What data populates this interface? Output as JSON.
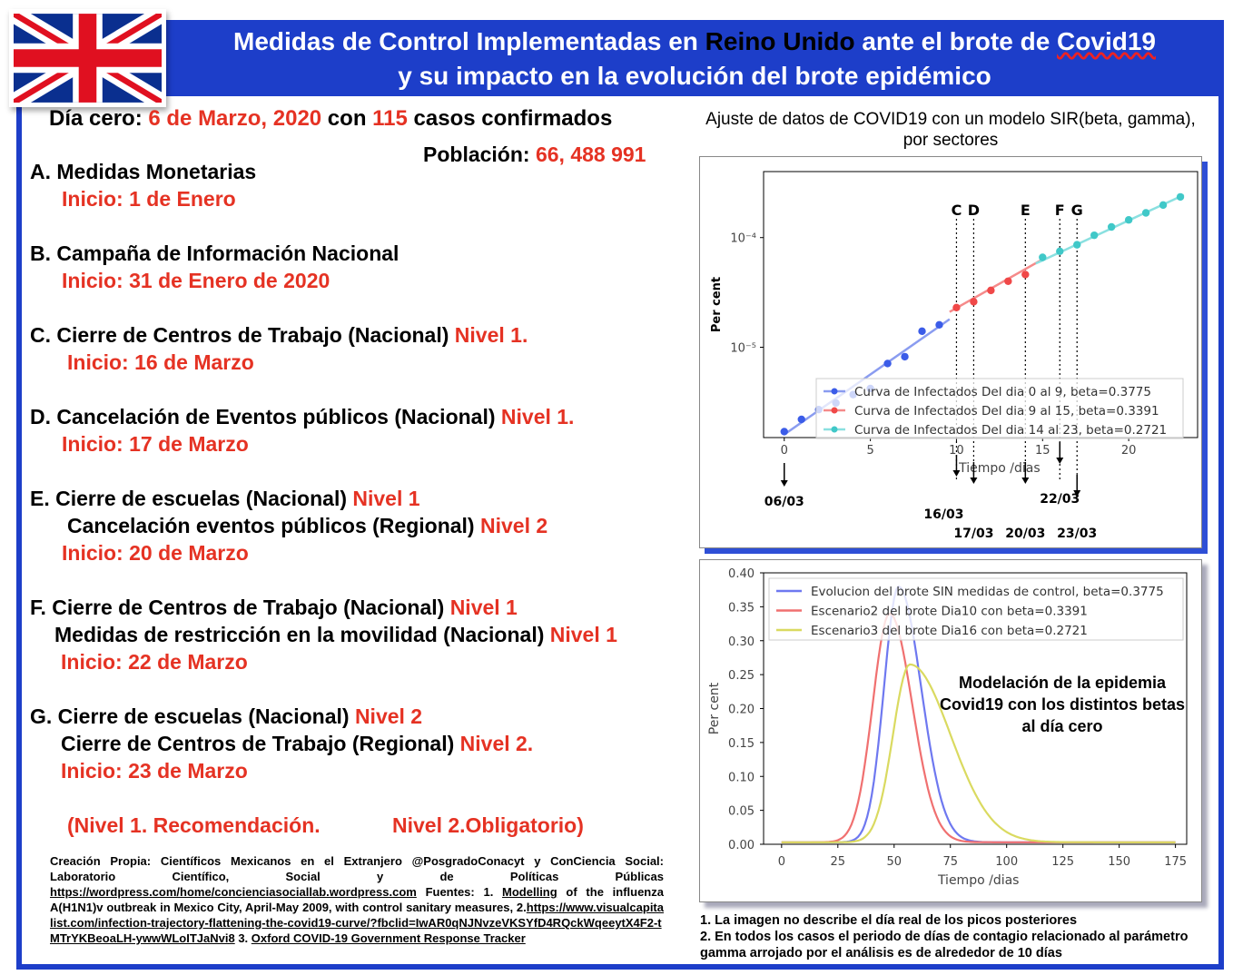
{
  "header": {
    "title_part1": "Medidas de Control Implementadas en ",
    "title_country": "Reino Unido",
    "title_part2": " ante el brote de ",
    "title_disease": "Covid19",
    "subtitle": "y su impacto en la evolución del brote epidémico"
  },
  "flag": {
    "icon": "union-jack-flag",
    "colors": {
      "blue": "#0a2f8f",
      "red": "#e01020",
      "white": "#ffffff"
    }
  },
  "day_zero": {
    "label": "Día cero: ",
    "date": "6 de Marzo, 2020",
    "mid": " con ",
    "cases": "115",
    "suffix": " casos confirmados"
  },
  "population": {
    "label": "Población: ",
    "value": "66, 488 991"
  },
  "measures": [
    {
      "heading": "A.   Medidas Monetarias",
      "start": "Inicio: 1 de Enero"
    },
    {
      "heading": "B.  Campaña de Información Nacional",
      "start": "Inicio: 31 de Enero de 2020"
    },
    {
      "heading": "C. Cierre de Centros de Trabajo (Nacional) ",
      "level": "Nivel 1.",
      "start": "Inicio: 16 de Marzo"
    },
    {
      "heading": "D. Cancelación de Eventos públicos (Nacional) ",
      "level": "Nivel 1.",
      "start": "Inicio: 17 de Marzo"
    },
    {
      "heading": "E.  Cierre de escuelas (Nacional) ",
      "level": "Nivel 1",
      "heading2": "Cancelación eventos públicos (Regional) ",
      "level2": "Nivel 2",
      "start": "Inicio: 20 de Marzo"
    },
    {
      "heading": "F. Cierre de Centros de Trabajo (Nacional) ",
      "level": "Nivel 1",
      "heading2": "Medidas de restricción en la movilidad (Nacional) ",
      "level2": "Nivel 1",
      "start": "Inicio: 22 de Marzo"
    },
    {
      "heading": "G.  Cierre de escuelas (Nacional) ",
      "level": "Nivel 2",
      "heading2": "Cierre de Centros de Trabajo (Regional) ",
      "level2": "Nivel 2.",
      "start": "Inicio: 23 de Marzo"
    }
  ],
  "levels_legend": {
    "level1": "(Nivel 1. Recomendación.",
    "level2": "Nivel 2.Obligatorio)"
  },
  "credits": {
    "text1": "Creación Propia: Científicos Mexicanos en el Extranjero @PosgradoConacyt y ConCiencia Social: Laboratorio Científico, Social y de Políticas Públicas ",
    "link1": "https://wordpress.com/home/concienciasociallab.wordpress.com",
    "text2": " Fuentes: 1. ",
    "link2": "Modelling",
    "text3": " of the influenza A(H1N1)v outbreak in Mexico City, April-May 2009, with control sanitary measures, 2.",
    "link3": "https://www.visualcapitalist.com/infection-trajectory-flattening-the-covid19-curve/?fbclid=IwAR0qNJNvzeVKSYfD4RQckWqeeytX4F2-tMTrYKBeoaLH-ywwWLoITJaNvi8",
    "text4": "  3. ",
    "link4": "Oxford COVID-19 Government Response Tracker"
  },
  "notes": {
    "n1": "1. La imagen no describe el día real de los picos posteriores",
    "n2": "2. En todos los casos el periodo de días de contagio relacionado  al parámetro gamma arrojado por el análisis  es de alrededor de 10 días"
  },
  "chart_data": [
    {
      "type": "scatter",
      "title": "Ajuste de datos de COVID19 con un modelo SIR(beta, gamma), por sectores",
      "xlabel": "Tiempo /dias",
      "ylabel": "Per cent",
      "yscale": "log",
      "xlim": [
        -1.2,
        24
      ],
      "ylim": [
        1.5e-06,
        0.0004
      ],
      "x_ticks": [
        0,
        5,
        10,
        15,
        20
      ],
      "y_ticks": [
        {
          "value": 1e-05,
          "label": "10⁻⁵"
        },
        {
          "value": 0.0001,
          "label": "10⁻⁴"
        }
      ],
      "grid": false,
      "legend_position": "lower-right",
      "series": [
        {
          "name": "Curva de Infectados Del dia 0 al 9, beta=0.3775",
          "color": "#3b5ce8",
          "x": [
            0,
            1,
            2,
            3,
            4,
            5,
            6,
            7,
            8,
            9
          ],
          "y": [
            1.7e-06,
            2.2e-06,
            2.7e-06,
            3.1e-06,
            3.7e-06,
            4.2e-06,
            7.1e-06,
            8.2e-06,
            1.4e-05,
            1.6e-05
          ]
        },
        {
          "name": "Curva de Infectados Del dia 9 al 15, beta=0.3391",
          "color": "#f04848",
          "x": [
            10,
            11,
            12,
            13,
            14
          ],
          "y": [
            2.3e-05,
            2.6e-05,
            3.3e-05,
            4e-05,
            4.6e-05
          ]
        },
        {
          "name": "Curva de Infectados Del dia 14 al 23, beta=0.2721",
          "color": "#40c8c8",
          "x": [
            15,
            16,
            17,
            18,
            19,
            20,
            21,
            22,
            23
          ],
          "y": [
            6.6e-05,
            7.5e-05,
            8.6e-05,
            0.000105,
            0.000125,
            0.000145,
            0.000168,
            0.000198,
            0.000235
          ]
        }
      ],
      "fit_lines": [
        {
          "color": "#8a9cf0",
          "x": [
            0,
            9.6
          ],
          "y": [
            1.6e-06,
            1.8e-05
          ]
        },
        {
          "color": "#f58a8a",
          "x": [
            9.6,
            15.2
          ],
          "y": [
            2.1e-05,
            6.6e-05
          ]
        },
        {
          "color": "#8ae0e0",
          "x": [
            14.6,
            23.2
          ],
          "y": [
            5.8e-05,
            0.000245
          ]
        }
      ],
      "event_lines": [
        {
          "label": "C",
          "x": 10,
          "date": "16/03"
        },
        {
          "label": "D",
          "x": 11,
          "date": "17/03"
        },
        {
          "label": "E",
          "x": 14,
          "date": "20/03"
        },
        {
          "label": "F",
          "x": 16,
          "date": "22/03"
        },
        {
          "label": "G",
          "x": 17,
          "date": "23/03"
        }
      ],
      "day_zero_date": {
        "x": 0,
        "date": "06/03"
      }
    },
    {
      "type": "line",
      "xlabel": "Tiempo /dias",
      "ylabel": "Per cent",
      "xlim": [
        -8,
        180
      ],
      "ylim": [
        0,
        0.4
      ],
      "x_ticks": [
        0,
        25,
        50,
        75,
        100,
        125,
        150,
        175
      ],
      "y_ticks": [
        0.0,
        0.05,
        0.1,
        0.15,
        0.2,
        0.25,
        0.3,
        0.35,
        0.4
      ],
      "grid": false,
      "legend_position": "top-right",
      "annotation": "Modelación de la epidemia Covid19 con los distintos betas al día cero",
      "series": [
        {
          "name": "Evolucion del brote SIN medidas de control, beta=0.3775",
          "color": "#6e78f0",
          "peak_x": 52,
          "peak_y": 0.38,
          "sigma_left": 6.5,
          "sigma_right": 10,
          "tail": 0.003
        },
        {
          "name": "Escenario2 del brote Dia10 con beta=0.3391",
          "color": "#f07070",
          "peak_x": 48,
          "peak_y": 0.34,
          "sigma_left": 7.5,
          "sigma_right": 10,
          "tail": 0.003
        },
        {
          "name": "Escenario3 del brote Dia16 con beta=0.2721",
          "color": "#dada60",
          "peak_x": 57,
          "peak_y": 0.265,
          "sigma_left": 7.5,
          "sigma_right": 18,
          "tail": 0.003
        }
      ]
    }
  ]
}
